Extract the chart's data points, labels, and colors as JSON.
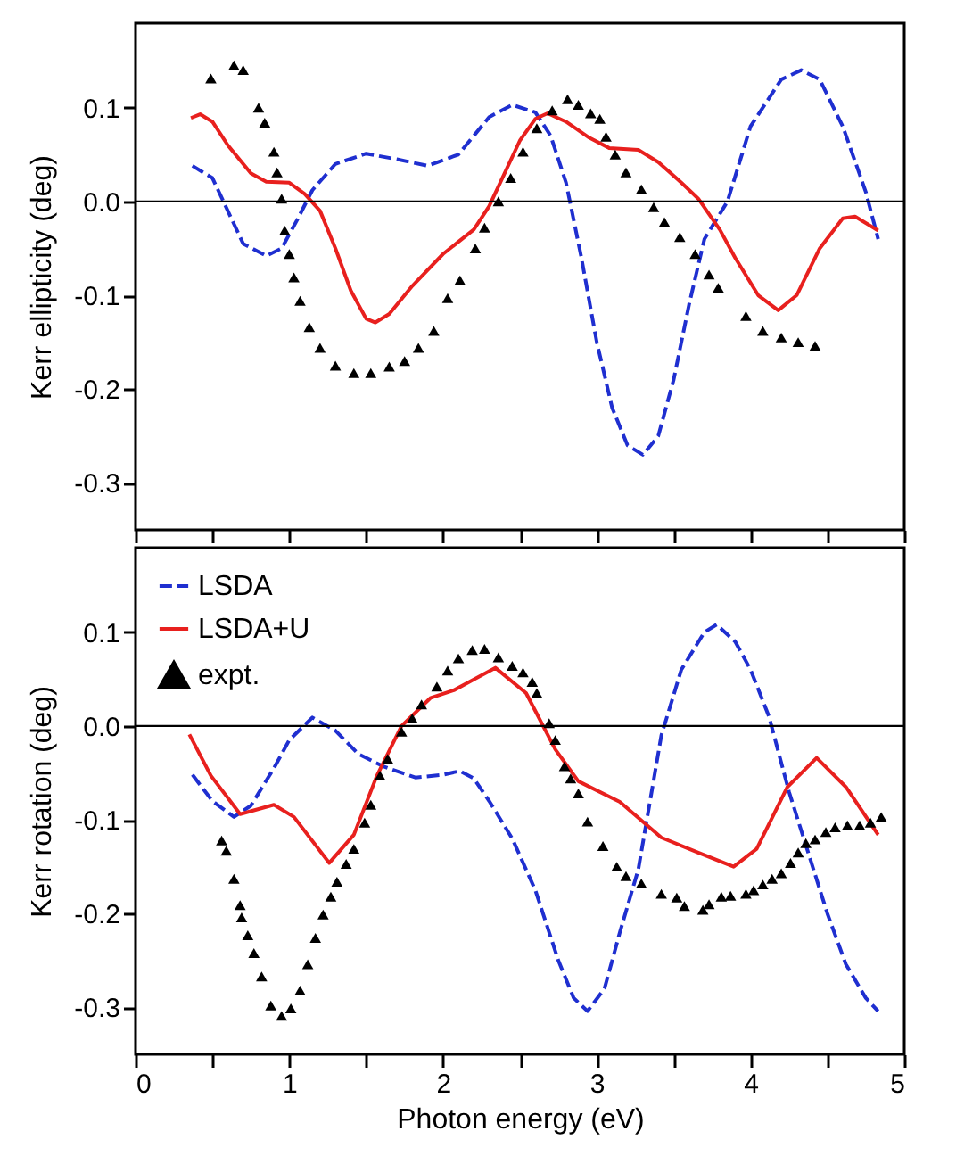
{
  "chart_data": [
    {
      "type": "line",
      "ylabel": "Kerr ellipticity (deg)",
      "xlim": [
        0,
        5
      ],
      "xticks": [
        0,
        {
          "value": 0.5,
          "label": null
        },
        1,
        {
          "value": 1.5,
          "label": null
        },
        2,
        {
          "value": 2.5,
          "label": null
        },
        3,
        {
          "value": 3.5,
          "label": null
        },
        4,
        {
          "value": 4.5,
          "label": null
        },
        5
      ],
      "ylim": [
        -0.35,
        0.19
      ],
      "yticks": [
        -0.3,
        -0.2,
        -0.1,
        {
          "value": 0,
          "label": "0.0"
        },
        0.1
      ],
      "tick_labels": "y",
      "grid": false,
      "legend": false,
      "ref_lines": [
        {
          "axis": "y",
          "value": 0,
          "color": "#000000",
          "line_style": "solid"
        }
      ],
      "series": [
        {
          "color": "#1f2fd0",
          "line_style": "dashed",
          "x": [
            0.37,
            0.5,
            0.6,
            0.7,
            0.85,
            0.95,
            1.05,
            1.15,
            1.3,
            1.5,
            1.7,
            1.9,
            2.1,
            2.3,
            2.45,
            2.6,
            2.7,
            2.8,
            2.9,
            3.0,
            3.1,
            3.2,
            3.3,
            3.4,
            3.5,
            3.6,
            3.7,
            3.85,
            4.0,
            4.2,
            4.33,
            4.45,
            4.6,
            4.75,
            4.83
          ],
          "values": [
            0.038,
            0.025,
            -0.01,
            -0.045,
            -0.058,
            -0.05,
            -0.02,
            0.012,
            0.04,
            0.051,
            0.045,
            0.038,
            0.05,
            0.09,
            0.103,
            0.095,
            0.07,
            0.02,
            -0.06,
            -0.15,
            -0.22,
            -0.26,
            -0.27,
            -0.25,
            -0.19,
            -0.11,
            -0.04,
            0.0,
            0.08,
            0.13,
            0.14,
            0.13,
            0.08,
            0.01,
            -0.04
          ]
        },
        {
          "color": "#e8201e",
          "line_style": "solid",
          "x": [
            0.36,
            0.42,
            0.5,
            0.6,
            0.75,
            0.85,
            1.0,
            1.1,
            1.2,
            1.3,
            1.4,
            1.5,
            1.56,
            1.65,
            1.8,
            2.0,
            2.2,
            2.3,
            2.4,
            2.5,
            2.6,
            2.68,
            2.8,
            2.95,
            3.08,
            3.27,
            3.4,
            3.55,
            3.66,
            3.8,
            3.9,
            4.05,
            4.18,
            4.3,
            4.45,
            4.6,
            4.68,
            4.83
          ],
          "values": [
            0.089,
            0.093,
            0.085,
            0.06,
            0.03,
            0.021,
            0.02,
            0.008,
            -0.01,
            -0.05,
            -0.095,
            -0.125,
            -0.129,
            -0.12,
            -0.09,
            -0.056,
            -0.03,
            -0.005,
            0.03,
            0.065,
            0.088,
            0.094,
            0.085,
            0.068,
            0.057,
            0.055,
            0.042,
            0.02,
            0.003,
            -0.03,
            -0.06,
            -0.1,
            -0.116,
            -0.1,
            -0.05,
            -0.018,
            -0.016,
            -0.031
          ]
        },
        {
          "type": "scatter",
          "color": "#000000",
          "marker": "triangle",
          "x": [
            0.49,
            0.64,
            0.7,
            0.8,
            0.84,
            0.9,
            0.92,
            0.95,
            0.97,
            1.0,
            1.03,
            1.07,
            1.13,
            1.2,
            1.3,
            1.42,
            1.53,
            1.65,
            1.75,
            1.84,
            1.94,
            2.03,
            2.11,
            2.21,
            2.27,
            2.36,
            2.44,
            2.52,
            2.61,
            2.71,
            2.81,
            2.88,
            2.96,
            3.02,
            3.06,
            3.12,
            3.19,
            3.29,
            3.37,
            3.44,
            3.54,
            3.64,
            3.73,
            3.79,
            3.97,
            4.08,
            4.2,
            4.31,
            4.42
          ],
          "values": [
            0.131,
            0.145,
            0.14,
            0.1,
            0.084,
            0.053,
            0.031,
            0.003,
            -0.031,
            -0.056,
            -0.081,
            -0.106,
            -0.134,
            -0.156,
            -0.175,
            -0.183,
            -0.183,
            -0.176,
            -0.17,
            -0.156,
            -0.138,
            -0.103,
            -0.084,
            -0.05,
            -0.028,
            0.0,
            0.025,
            0.053,
            0.078,
            0.097,
            0.109,
            0.103,
            0.094,
            0.088,
            0.069,
            0.05,
            0.031,
            0.013,
            -0.006,
            -0.022,
            -0.038,
            -0.056,
            -0.078,
            -0.092,
            -0.122,
            -0.138,
            -0.145,
            -0.15,
            -0.154
          ]
        }
      ]
    },
    {
      "type": "line",
      "xlabel": "Photon energy (eV)",
      "ylabel": "Kerr rotation (deg)",
      "xlim": [
        0,
        5
      ],
      "xticks": [
        0,
        {
          "value": 0.5,
          "label": null
        },
        1,
        {
          "value": 1.5,
          "label": null
        },
        2,
        {
          "value": 2.5,
          "label": null
        },
        3,
        {
          "value": 3.5,
          "label": null
        },
        4,
        {
          "value": 4.5,
          "label": null
        },
        5
      ],
      "ylim": [
        -0.35,
        0.19
      ],
      "yticks": [
        -0.3,
        -0.2,
        -0.1,
        {
          "value": 0,
          "label": "0.0"
        },
        0.1
      ],
      "grid": false,
      "legend": "top left",
      "ref_lines": [
        {
          "axis": "y",
          "value": 0,
          "color": "#000000",
          "line_style": "solid"
        }
      ],
      "series": [
        {
          "name": "LSDA",
          "color": "#1f2fd0",
          "line_style": "dashed",
          "x": [
            0.37,
            0.5,
            0.64,
            0.75,
            0.9,
            1.0,
            1.15,
            1.3,
            1.45,
            1.61,
            1.82,
            2.0,
            2.11,
            2.2,
            2.3,
            2.45,
            2.6,
            2.75,
            2.85,
            2.94,
            3.05,
            3.15,
            3.27,
            3.42,
            3.55,
            3.7,
            3.78,
            3.9,
            4.0,
            4.12,
            4.25,
            4.35,
            4.5,
            4.62,
            4.75,
            4.83
          ],
          "values": [
            -0.052,
            -0.08,
            -0.097,
            -0.085,
            -0.045,
            -0.015,
            0.009,
            -0.005,
            -0.03,
            -0.043,
            -0.055,
            -0.052,
            -0.048,
            -0.056,
            -0.08,
            -0.12,
            -0.175,
            -0.25,
            -0.29,
            -0.304,
            -0.28,
            -0.22,
            -0.153,
            -0.01,
            0.06,
            0.1,
            0.108,
            0.09,
            0.06,
            0.01,
            -0.07,
            -0.122,
            -0.2,
            -0.254,
            -0.29,
            -0.304
          ]
        },
        {
          "name": "LSDA+U",
          "color": "#e8201e",
          "line_style": "solid",
          "x": [
            0.35,
            0.49,
            0.68,
            0.9,
            1.03,
            1.26,
            1.42,
            1.57,
            1.73,
            1.92,
            2.07,
            2.34,
            2.54,
            2.73,
            2.88,
            3.15,
            3.42,
            3.66,
            3.89,
            4.04,
            4.24,
            4.43,
            4.62,
            4.83
          ],
          "values": [
            -0.009,
            -0.053,
            -0.094,
            -0.084,
            -0.097,
            -0.146,
            -0.116,
            -0.053,
            0.0,
            0.03,
            0.038,
            0.062,
            0.035,
            -0.025,
            -0.059,
            -0.081,
            -0.119,
            -0.135,
            -0.15,
            -0.131,
            -0.065,
            -0.034,
            -0.065,
            -0.116
          ]
        },
        {
          "type": "scatter",
          "name": "expt.",
          "color": "#000000",
          "marker": "triangle",
          "x": [
            0.56,
            0.59,
            0.64,
            0.68,
            0.69,
            0.73,
            0.77,
            0.82,
            0.88,
            0.95,
            1.01,
            1.07,
            1.12,
            1.17,
            1.22,
            1.27,
            1.31,
            1.37,
            1.42,
            1.49,
            1.53,
            1.59,
            1.64,
            1.73,
            1.8,
            1.86,
            1.96,
            2.03,
            2.1,
            2.19,
            2.27,
            2.36,
            2.45,
            2.52,
            2.58,
            2.61,
            2.69,
            2.73,
            2.79,
            2.83,
            2.88,
            2.94,
            3.04,
            3.13,
            3.19,
            3.29,
            3.42,
            3.52,
            3.57,
            3.69,
            3.73,
            3.81,
            3.87,
            3.97,
            4.02,
            4.08,
            4.14,
            4.2,
            4.26,
            4.31,
            4.36,
            4.42,
            4.49,
            4.55,
            4.63,
            4.71,
            4.78,
            4.85
          ],
          "values": [
            -0.122,
            -0.133,
            -0.163,
            -0.191,
            -0.204,
            -0.223,
            -0.242,
            -0.267,
            -0.298,
            -0.309,
            -0.301,
            -0.282,
            -0.254,
            -0.226,
            -0.201,
            -0.182,
            -0.166,
            -0.147,
            -0.131,
            -0.103,
            -0.084,
            -0.053,
            -0.035,
            -0.006,
            0.008,
            0.023,
            0.042,
            0.059,
            0.072,
            0.081,
            0.082,
            0.073,
            0.064,
            0.057,
            0.047,
            0.035,
            0.003,
            -0.015,
            -0.043,
            -0.056,
            -0.072,
            -0.102,
            -0.128,
            -0.15,
            -0.16,
            -0.168,
            -0.179,
            -0.183,
            -0.192,
            -0.196,
            -0.19,
            -0.182,
            -0.181,
            -0.179,
            -0.175,
            -0.169,
            -0.163,
            -0.157,
            -0.146,
            -0.135,
            -0.125,
            -0.121,
            -0.113,
            -0.108,
            -0.106,
            -0.106,
            -0.103,
            -0.097
          ]
        }
      ]
    }
  ]
}
